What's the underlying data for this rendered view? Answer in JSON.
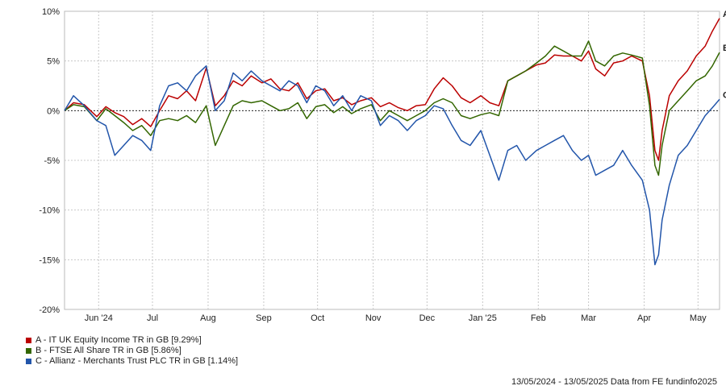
{
  "chart_data": {
    "type": "line",
    "x_range": [
      "13/05/2024",
      "13/05/2025"
    ],
    "ylim": [
      -20,
      10
    ],
    "y_ticks": [
      10,
      5,
      0,
      -5,
      -10,
      -15,
      -20
    ],
    "y_tick_labels": [
      "10%",
      "5%",
      "0%",
      "-5%",
      "-10%",
      "-15%",
      "-20%"
    ],
    "x_ticks": [
      {
        "label": "Jun '24",
        "date": "2024-06-01"
      },
      {
        "label": "Jul",
        "date": "2024-07-01"
      },
      {
        "label": "Aug",
        "date": "2024-08-01"
      },
      {
        "label": "Sep",
        "date": "2024-09-01"
      },
      {
        "label": "Oct",
        "date": "2024-10-01"
      },
      {
        "label": "Nov",
        "date": "2024-11-01"
      },
      {
        "label": "Dec",
        "date": "2024-12-01"
      },
      {
        "label": "Jan '25",
        "date": "2025-01-01"
      },
      {
        "label": "Feb",
        "date": "2025-02-01"
      },
      {
        "label": "Mar",
        "date": "2025-03-01"
      },
      {
        "label": "Apr",
        "date": "2025-04-01"
      },
      {
        "label": "May",
        "date": "2025-05-01"
      }
    ],
    "zero_line": true,
    "grid": true,
    "legend_position": "bottom-left",
    "series": [
      {
        "name": "A - IT UK Equity Income TR in GB [9.29%]",
        "end_label": "A",
        "color": "#bb0000",
        "points": [
          [
            "2024-05-13",
            0
          ],
          [
            "2024-05-18",
            0.8
          ],
          [
            "2024-05-24",
            0.6
          ],
          [
            "2024-05-31",
            -0.6
          ],
          [
            "2024-06-05",
            0.4
          ],
          [
            "2024-06-10",
            -0.2
          ],
          [
            "2024-06-15",
            -0.6
          ],
          [
            "2024-06-20",
            -1.4
          ],
          [
            "2024-06-25",
            -0.8
          ],
          [
            "2024-06-30",
            -1.6
          ],
          [
            "2024-07-05",
            0.0
          ],
          [
            "2024-07-10",
            1.5
          ],
          [
            "2024-07-15",
            1.2
          ],
          [
            "2024-07-20",
            2.0
          ],
          [
            "2024-07-25",
            1.0
          ],
          [
            "2024-07-31",
            4.3
          ],
          [
            "2024-08-05",
            0.5
          ],
          [
            "2024-08-10",
            1.5
          ],
          [
            "2024-08-15",
            3.0
          ],
          [
            "2024-08-20",
            2.5
          ],
          [
            "2024-08-25",
            3.5
          ],
          [
            "2024-08-31",
            2.8
          ],
          [
            "2024-09-05",
            3.2
          ],
          [
            "2024-09-10",
            2.2
          ],
          [
            "2024-09-15",
            2.0
          ],
          [
            "2024-09-20",
            2.8
          ],
          [
            "2024-09-25",
            1.2
          ],
          [
            "2024-09-30",
            2.0
          ],
          [
            "2024-10-05",
            2.2
          ],
          [
            "2024-10-10",
            1.0
          ],
          [
            "2024-10-15",
            1.3
          ],
          [
            "2024-10-20",
            0.6
          ],
          [
            "2024-10-25",
            1.0
          ],
          [
            "2024-10-31",
            1.3
          ],
          [
            "2024-11-05",
            0.4
          ],
          [
            "2024-11-10",
            0.8
          ],
          [
            "2024-11-15",
            0.3
          ],
          [
            "2024-11-20",
            0.0
          ],
          [
            "2024-11-25",
            0.5
          ],
          [
            "2024-11-30",
            0.6
          ],
          [
            "2024-12-05",
            2.2
          ],
          [
            "2024-12-10",
            3.3
          ],
          [
            "2024-12-15",
            2.5
          ],
          [
            "2024-12-20",
            1.3
          ],
          [
            "2024-12-25",
            0.8
          ],
          [
            "2024-12-31",
            1.5
          ],
          [
            "2025-01-05",
            0.8
          ],
          [
            "2025-01-10",
            0.5
          ],
          [
            "2025-01-15",
            3.0
          ],
          [
            "2025-01-20",
            3.5
          ],
          [
            "2025-01-25",
            4.0
          ],
          [
            "2025-01-31",
            4.6
          ],
          [
            "2025-02-05",
            4.8
          ],
          [
            "2025-02-10",
            5.6
          ],
          [
            "2025-02-15",
            5.5
          ],
          [
            "2025-02-20",
            5.5
          ],
          [
            "2025-02-25",
            5.0
          ],
          [
            "2025-03-01",
            6.0
          ],
          [
            "2025-03-05",
            4.2
          ],
          [
            "2025-03-10",
            3.5
          ],
          [
            "2025-03-15",
            4.8
          ],
          [
            "2025-03-20",
            5.0
          ],
          [
            "2025-03-25",
            5.5
          ],
          [
            "2025-03-31",
            5.0
          ],
          [
            "2025-04-04",
            1.5
          ],
          [
            "2025-04-07",
            -4.0
          ],
          [
            "2025-04-09",
            -5.0
          ],
          [
            "2025-04-11",
            -2.0
          ],
          [
            "2025-04-15",
            1.5
          ],
          [
            "2025-04-20",
            3.0
          ],
          [
            "2025-04-25",
            4.0
          ],
          [
            "2025-04-30",
            5.5
          ],
          [
            "2025-05-05",
            6.5
          ],
          [
            "2025-05-09",
            8.0
          ],
          [
            "2025-05-13",
            9.29
          ]
        ]
      },
      {
        "name": "B - FTSE All Share TR in GB [5.86%]",
        "end_label": "B",
        "color": "#336600",
        "points": [
          [
            "2024-05-13",
            0
          ],
          [
            "2024-05-18",
            0.6
          ],
          [
            "2024-05-24",
            0.4
          ],
          [
            "2024-05-31",
            -1.0
          ],
          [
            "2024-06-05",
            0.2
          ],
          [
            "2024-06-10",
            -0.5
          ],
          [
            "2024-06-15",
            -1.2
          ],
          [
            "2024-06-20",
            -2.0
          ],
          [
            "2024-06-25",
            -1.5
          ],
          [
            "2024-06-30",
            -2.5
          ],
          [
            "2024-07-05",
            -1.0
          ],
          [
            "2024-07-10",
            -0.8
          ],
          [
            "2024-07-15",
            -1.0
          ],
          [
            "2024-07-20",
            -0.5
          ],
          [
            "2024-07-25",
            -1.2
          ],
          [
            "2024-07-31",
            0.5
          ],
          [
            "2024-08-05",
            -3.5
          ],
          [
            "2024-08-10",
            -1.5
          ],
          [
            "2024-08-15",
            0.5
          ],
          [
            "2024-08-20",
            1.0
          ],
          [
            "2024-08-25",
            0.8
          ],
          [
            "2024-08-31",
            1.0
          ],
          [
            "2024-09-05",
            0.5
          ],
          [
            "2024-09-10",
            0.0
          ],
          [
            "2024-09-15",
            0.2
          ],
          [
            "2024-09-20",
            0.8
          ],
          [
            "2024-09-25",
            -0.8
          ],
          [
            "2024-09-30",
            0.4
          ],
          [
            "2024-10-05",
            0.6
          ],
          [
            "2024-10-10",
            -0.2
          ],
          [
            "2024-10-15",
            0.4
          ],
          [
            "2024-10-20",
            -0.3
          ],
          [
            "2024-10-25",
            0.2
          ],
          [
            "2024-10-31",
            0.6
          ],
          [
            "2024-11-05",
            -1.0
          ],
          [
            "2024-11-10",
            0.0
          ],
          [
            "2024-11-15",
            -0.5
          ],
          [
            "2024-11-20",
            -1.0
          ],
          [
            "2024-11-25",
            -0.5
          ],
          [
            "2024-11-30",
            0.0
          ],
          [
            "2024-12-05",
            0.8
          ],
          [
            "2024-12-10",
            1.2
          ],
          [
            "2024-12-15",
            0.8
          ],
          [
            "2024-12-20",
            -0.5
          ],
          [
            "2024-12-25",
            -0.8
          ],
          [
            "2024-12-31",
            -0.4
          ],
          [
            "2025-01-05",
            -0.2
          ],
          [
            "2025-01-10",
            -0.5
          ],
          [
            "2025-01-15",
            3.0
          ],
          [
            "2025-01-20",
            3.5
          ],
          [
            "2025-01-25",
            4.0
          ],
          [
            "2025-01-31",
            4.8
          ],
          [
            "2025-02-05",
            5.5
          ],
          [
            "2025-02-10",
            6.5
          ],
          [
            "2025-02-15",
            6.0
          ],
          [
            "2025-02-20",
            5.5
          ],
          [
            "2025-02-25",
            5.5
          ],
          [
            "2025-03-01",
            7.0
          ],
          [
            "2025-03-05",
            5.0
          ],
          [
            "2025-03-10",
            4.5
          ],
          [
            "2025-03-15",
            5.5
          ],
          [
            "2025-03-20",
            5.8
          ],
          [
            "2025-03-25",
            5.6
          ],
          [
            "2025-03-31",
            5.3
          ],
          [
            "2025-04-04",
            0.5
          ],
          [
            "2025-04-07",
            -5.5
          ],
          [
            "2025-04-09",
            -6.5
          ],
          [
            "2025-04-11",
            -3.5
          ],
          [
            "2025-04-15",
            0.0
          ],
          [
            "2025-04-20",
            1.0
          ],
          [
            "2025-04-25",
            2.0
          ],
          [
            "2025-04-30",
            3.0
          ],
          [
            "2025-05-05",
            3.5
          ],
          [
            "2025-05-09",
            4.5
          ],
          [
            "2025-05-13",
            5.86
          ]
        ]
      },
      {
        "name": "C - Allianz - Merchants Trust PLC TR in GB [1.14%]",
        "end_label": "C",
        "color": "#2255aa",
        "points": [
          [
            "2024-05-13",
            0
          ],
          [
            "2024-05-18",
            1.5
          ],
          [
            "2024-05-24",
            0.5
          ],
          [
            "2024-05-31",
            -1.0
          ],
          [
            "2024-06-05",
            -1.5
          ],
          [
            "2024-06-10",
            -4.5
          ],
          [
            "2024-06-15",
            -3.5
          ],
          [
            "2024-06-20",
            -2.5
          ],
          [
            "2024-06-25",
            -3.0
          ],
          [
            "2024-06-30",
            -4.0
          ],
          [
            "2024-07-05",
            0.5
          ],
          [
            "2024-07-10",
            2.5
          ],
          [
            "2024-07-15",
            2.8
          ],
          [
            "2024-07-20",
            2.0
          ],
          [
            "2024-07-25",
            3.5
          ],
          [
            "2024-07-31",
            4.5
          ],
          [
            "2024-08-05",
            0.0
          ],
          [
            "2024-08-10",
            1.0
          ],
          [
            "2024-08-15",
            3.8
          ],
          [
            "2024-08-20",
            3.0
          ],
          [
            "2024-08-25",
            4.0
          ],
          [
            "2024-08-31",
            3.0
          ],
          [
            "2024-09-05",
            2.5
          ],
          [
            "2024-09-10",
            2.0
          ],
          [
            "2024-09-15",
            3.0
          ],
          [
            "2024-09-20",
            2.5
          ],
          [
            "2024-09-25",
            0.8
          ],
          [
            "2024-09-30",
            2.5
          ],
          [
            "2024-10-05",
            2.0
          ],
          [
            "2024-10-10",
            0.5
          ],
          [
            "2024-10-15",
            1.5
          ],
          [
            "2024-10-20",
            0.0
          ],
          [
            "2024-10-25",
            1.5
          ],
          [
            "2024-10-31",
            1.0
          ],
          [
            "2024-11-05",
            -1.5
          ],
          [
            "2024-11-10",
            -0.5
          ],
          [
            "2024-11-15",
            -1.0
          ],
          [
            "2024-11-20",
            -2.0
          ],
          [
            "2024-11-25",
            -1.0
          ],
          [
            "2024-11-30",
            -0.5
          ],
          [
            "2024-12-05",
            0.5
          ],
          [
            "2024-12-10",
            0.2
          ],
          [
            "2024-12-15",
            -1.5
          ],
          [
            "2024-12-20",
            -3.0
          ],
          [
            "2024-12-25",
            -3.5
          ],
          [
            "2024-12-31",
            -2.0
          ],
          [
            "2025-01-05",
            -4.5
          ],
          [
            "2025-01-10",
            -7.0
          ],
          [
            "2025-01-15",
            -4.0
          ],
          [
            "2025-01-20",
            -3.5
          ],
          [
            "2025-01-25",
            -5.0
          ],
          [
            "2025-01-31",
            -4.0
          ],
          [
            "2025-02-05",
            -3.5
          ],
          [
            "2025-02-10",
            -3.0
          ],
          [
            "2025-02-15",
            -2.5
          ],
          [
            "2025-02-20",
            -4.0
          ],
          [
            "2025-02-25",
            -5.0
          ],
          [
            "2025-03-01",
            -4.5
          ],
          [
            "2025-03-05",
            -6.5
          ],
          [
            "2025-03-10",
            -6.0
          ],
          [
            "2025-03-15",
            -5.5
          ],
          [
            "2025-03-20",
            -4.0
          ],
          [
            "2025-03-25",
            -5.5
          ],
          [
            "2025-03-31",
            -7.0
          ],
          [
            "2025-04-04",
            -10.0
          ],
          [
            "2025-04-07",
            -15.5
          ],
          [
            "2025-04-09",
            -14.5
          ],
          [
            "2025-04-11",
            -11.0
          ],
          [
            "2025-04-15",
            -7.5
          ],
          [
            "2025-04-20",
            -4.5
          ],
          [
            "2025-04-25",
            -3.5
          ],
          [
            "2025-04-30",
            -2.0
          ],
          [
            "2025-05-05",
            -0.5
          ],
          [
            "2025-05-09",
            0.3
          ],
          [
            "2025-05-13",
            1.14
          ]
        ]
      }
    ]
  },
  "footer": "13/05/2024 - 13/05/2025 Data from FE fundinfo2025"
}
